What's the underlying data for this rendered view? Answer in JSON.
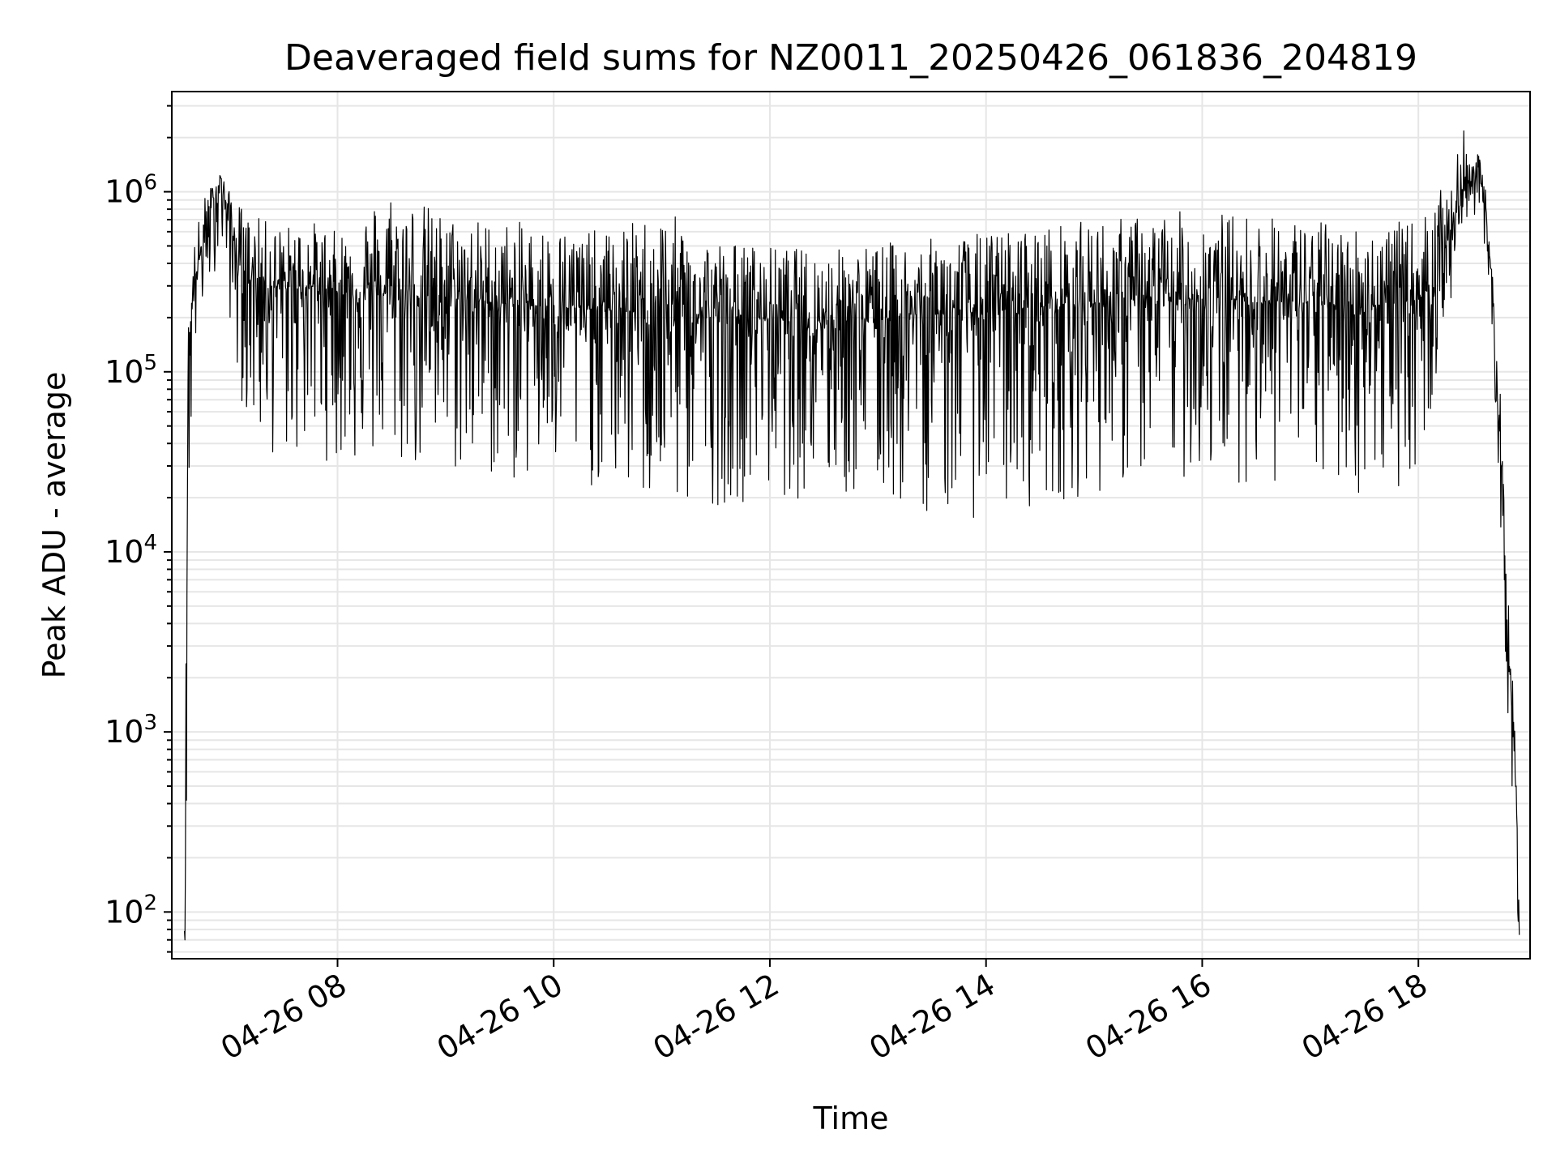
{
  "chart_data": {
    "type": "line",
    "title": "Deaveraged field sums for NZ0011_20250426_061836_204819",
    "xlabel": "Time",
    "ylabel": "Peak ADU - average",
    "yscale": "log",
    "grid": true,
    "legend": "none",
    "xlim": [
      "2025-04-26 06:28",
      "2025-04-26 19:02"
    ],
    "ylim": [
      55,
      3600000
    ],
    "x_ticks": [
      {
        "value": "2025-04-26 08:00",
        "label": "04-26 08"
      },
      {
        "value": "2025-04-26 10:00",
        "label": "04-26 10"
      },
      {
        "value": "2025-04-26 12:00",
        "label": "04-26 12"
      },
      {
        "value": "2025-04-26 14:00",
        "label": "04-26 14"
      },
      {
        "value": "2025-04-26 16:00",
        "label": "04-26 16"
      },
      {
        "value": "2025-04-26 18:00",
        "label": "04-26 18"
      }
    ],
    "y_ticks": [
      {
        "value": 100,
        "base": "10",
        "exp": "2"
      },
      {
        "value": 1000,
        "base": "10",
        "exp": "3"
      },
      {
        "value": 10000,
        "base": "10",
        "exp": "4"
      },
      {
        "value": 100000,
        "base": "10",
        "exp": "5"
      },
      {
        "value": 1000000,
        "base": "10",
        "exp": "6"
      }
    ],
    "colors": {
      "line": "#000000",
      "grid": "#e6e6e6",
      "axes": "#000000",
      "background": "#ffffff"
    },
    "series": [
      {
        "x": [
          "2025-04-26 06:35",
          "2025-04-26 06:36",
          "2025-04-26 06:37",
          "2025-04-26 06:40",
          "2025-04-26 06:45",
          "2025-04-26 06:50",
          "2025-04-26 06:55",
          "2025-04-26 07:00",
          "2025-04-26 07:05",
          "2025-04-26 07:10",
          "2025-04-26 07:20",
          "2025-04-26 07:30",
          "2025-04-26 07:45",
          "2025-04-26 08:00",
          "2025-04-26 08:30",
          "2025-04-26 09:00",
          "2025-04-26 09:30",
          "2025-04-26 10:00",
          "2025-04-26 10:30",
          "2025-04-26 11:00",
          "2025-04-26 11:30",
          "2025-04-26 12:00",
          "2025-04-26 12:30",
          "2025-04-26 13:00",
          "2025-04-26 13:30",
          "2025-04-26 14:00",
          "2025-04-26 14:30",
          "2025-04-26 15:00",
          "2025-04-26 15:30",
          "2025-04-26 16:00",
          "2025-04-26 16:30",
          "2025-04-26 17:00",
          "2025-04-26 17:30",
          "2025-04-26 18:00",
          "2025-04-26 18:10",
          "2025-04-26 18:20",
          "2025-04-26 18:25",
          "2025-04-26 18:30",
          "2025-04-26 18:35",
          "2025-04-26 18:40",
          "2025-04-26 18:45",
          "2025-04-26 18:50",
          "2025-04-26 18:54",
          "2025-04-26 18:56"
        ],
        "y": [
          80,
          1000,
          100000,
          300000,
          500000,
          800000,
          1200000,
          700000,
          400000,
          350000,
          300000,
          290000,
          300000,
          280000,
          270000,
          260000,
          240000,
          230000,
          220000,
          210000,
          200000,
          200000,
          195000,
          200000,
          210000,
          215000,
          230000,
          240000,
          250000,
          255000,
          250000,
          240000,
          230000,
          250000,
          350000,
          700000,
          1000000,
          1300000,
          1100000,
          400000,
          50000,
          3000,
          500,
          90
        ],
        "min": [
          60,
          100,
          10000,
          100000,
          200000,
          300000,
          500000,
          200000,
          80000,
          50000,
          35000,
          30000,
          35000,
          30000,
          28000,
          25000,
          24000,
          23000,
          22000,
          15000,
          18000,
          20000,
          19000,
          18000,
          16000,
          15000,
          18000,
          21000,
          24000,
          25000,
          24000,
          22000,
          20000,
          25000,
          80000,
          300000,
          500000,
          800000,
          600000,
          150000,
          20000,
          1000,
          150,
          60
        ],
        "max": [
          200,
          5000,
          200000,
          500000,
          900000,
          1100000,
          1300000,
          1000000,
          900000,
          750000,
          700000,
          650000,
          700000,
          600000,
          1100000,
          750000,
          700000,
          650000,
          600000,
          800000,
          550000,
          500000,
          480000,
          520000,
          550000,
          600000,
          650000,
          700000,
          750000,
          800000,
          750000,
          700000,
          650000,
          700000,
          900000,
          1500000,
          2200000,
          1800000,
          1500000,
          700000,
          100000,
          6000,
          900,
          95
        ]
      }
    ]
  }
}
